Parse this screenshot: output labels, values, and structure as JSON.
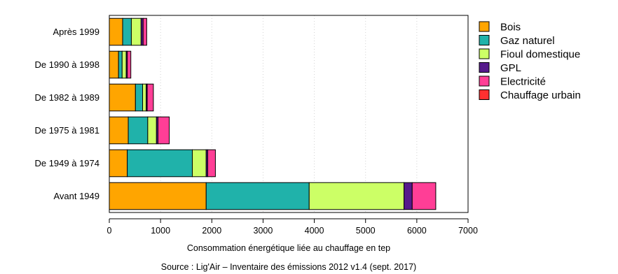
{
  "chart_data": {
    "type": "bar",
    "orientation": "horizontal",
    "stacked": true,
    "categories": [
      "Avant 1949",
      "De 1949 à 1974",
      "De 1975 à 1981",
      "De 1982 à 1989",
      "De 1990 à 1998",
      "Après 1999"
    ],
    "series": [
      {
        "name": "Bois",
        "color": "#FFA500",
        "values": [
          1890,
          350,
          370,
          510,
          180,
          260
        ]
      },
      {
        "name": "Gaz naturel",
        "color": "#20B2AA",
        "values": [
          2010,
          1270,
          380,
          140,
          70,
          170
        ]
      },
      {
        "name": "Fioul domestique",
        "color": "#CCFF66",
        "values": [
          1850,
          270,
          170,
          70,
          80,
          190
        ]
      },
      {
        "name": "GPL",
        "color": "#551A8B",
        "values": [
          160,
          30,
          30,
          20,
          20,
          40
        ]
      },
      {
        "name": "Electricité",
        "color": "#FF3E96",
        "values": [
          460,
          150,
          220,
          120,
          70,
          70
        ]
      },
      {
        "name": "Chauffage urbain",
        "color": "#FF3030",
        "values": [
          0,
          0,
          0,
          0,
          0,
          0
        ]
      }
    ],
    "xlabel": "Consommation énergétique liée au chauffage en tep",
    "xlim": [
      0,
      7000
    ],
    "xticks": [
      0,
      1000,
      2000,
      3000,
      4000,
      5000,
      6000,
      7000
    ],
    "grid": "vertical dotted",
    "legend_position": "right",
    "caption": "Source : Lig'Air – Inventaire des émissions 2012 v1.4 (sept. 2017)"
  }
}
